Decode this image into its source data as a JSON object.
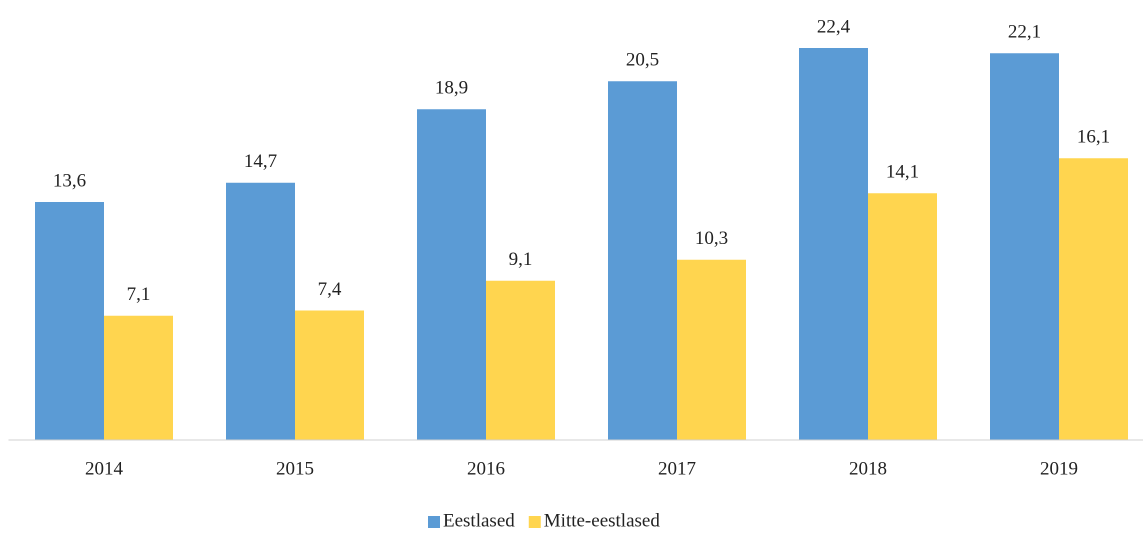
{
  "chart_data": {
    "type": "bar",
    "categories": [
      "2014",
      "2015",
      "2016",
      "2017",
      "2018",
      "2019"
    ],
    "series": [
      {
        "name": "Eestlased",
        "color": "#5b9bd5",
        "values": [
          13.6,
          14.7,
          18.9,
          20.5,
          22.4,
          22.1
        ],
        "value_labels": [
          "13,6",
          "14,7",
          "18,9",
          "20,5",
          "22,4",
          "22,1"
        ]
      },
      {
        "name": "Mitte-eestlased",
        "color": "#ffd54f",
        "values": [
          7.1,
          7.4,
          9.1,
          10.3,
          14.1,
          16.1
        ],
        "value_labels": [
          "7,1",
          "7,4",
          "9,1",
          "10,3",
          "14,1",
          "16,1"
        ]
      }
    ],
    "ylim": [
      0,
      24
    ],
    "legend": "bottom"
  }
}
